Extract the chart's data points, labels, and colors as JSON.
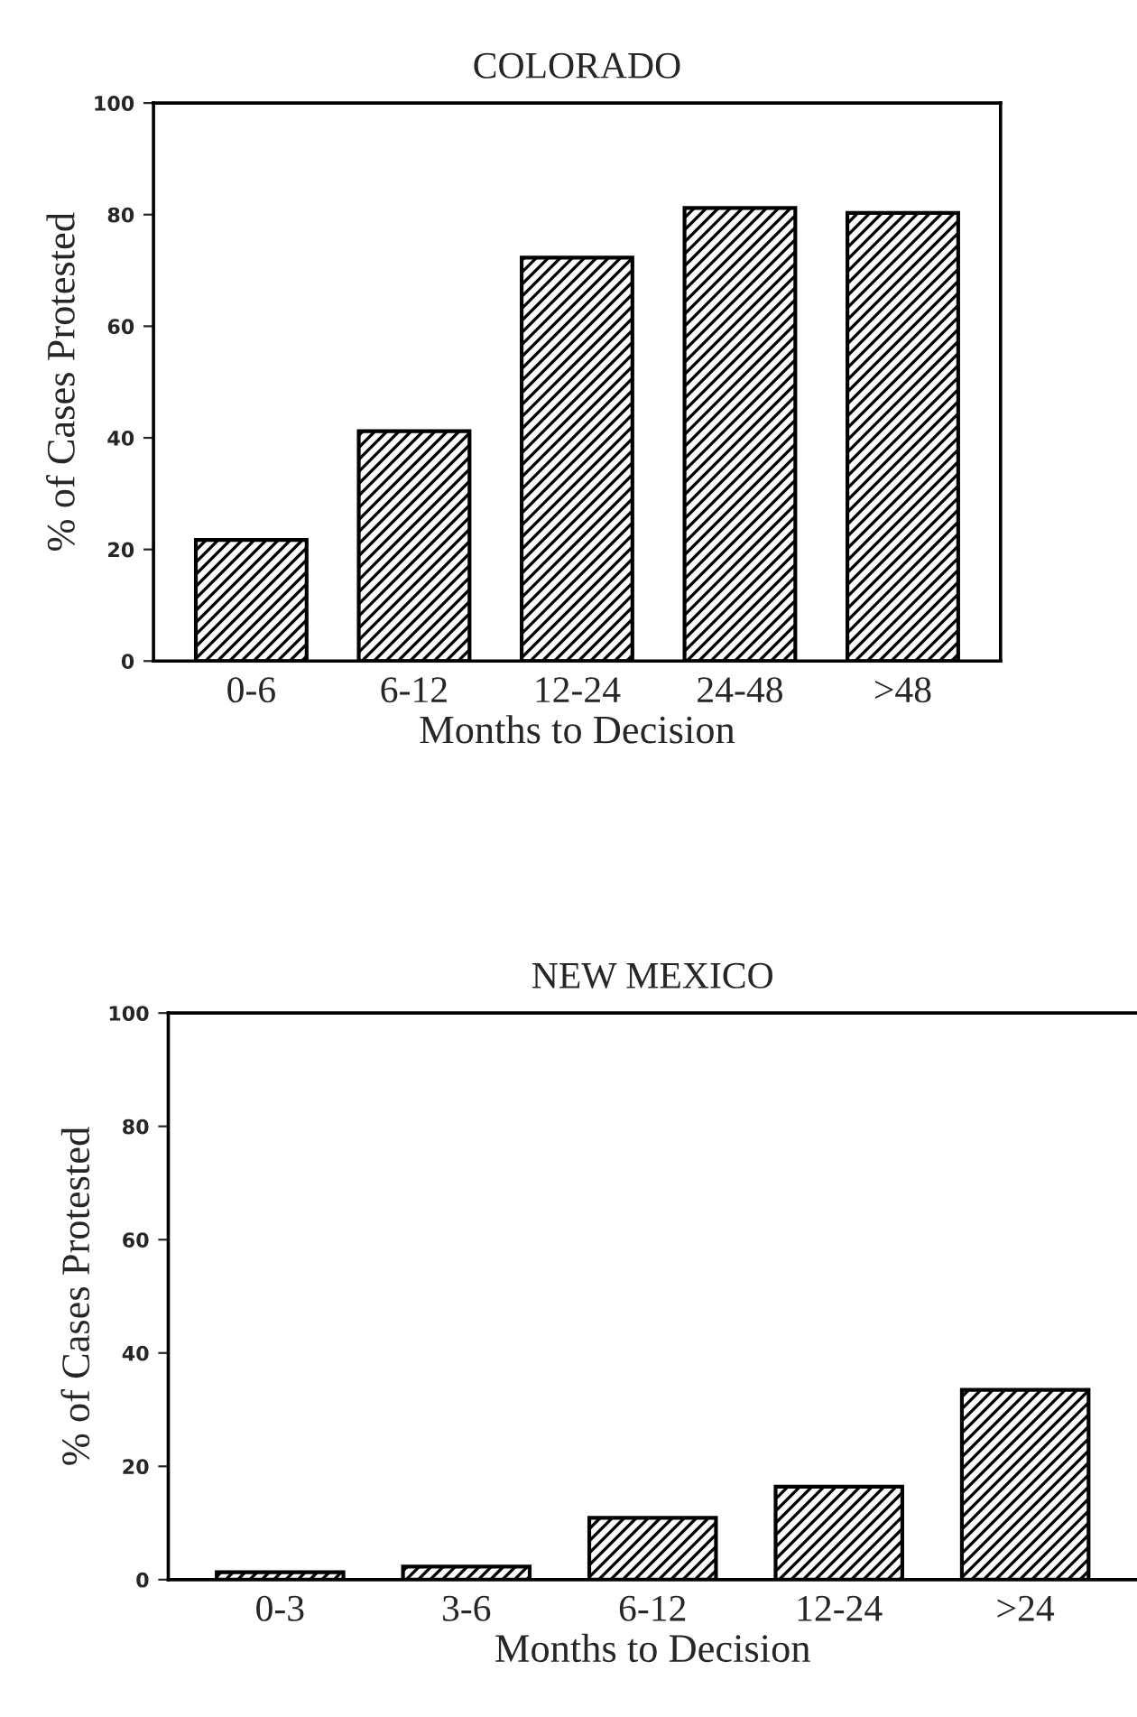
{
  "chart_data": [
    {
      "type": "bar",
      "title": "COLORADO",
      "xlabel": "Months to Decision",
      "ylabel": "% of Cases Protested",
      "categories": [
        "0-6",
        "6-12",
        "12-24",
        "24-48",
        ">48"
      ],
      "values": [
        21.7,
        41.2,
        72.3,
        81.2,
        80.3
      ],
      "color": "#000000",
      "ylim": [
        0,
        100
      ],
      "yticks": [
        0,
        20,
        40,
        60,
        80,
        100
      ],
      "grid": false,
      "legend": false
    },
    {
      "type": "bar",
      "title": "NEW MEXICO",
      "xlabel": "Months to Decision",
      "ylabel": "% of Cases Protested",
      "categories": [
        "0-3",
        "3-6",
        "6-12",
        "12-24",
        ">24"
      ],
      "values": [
        1.3,
        2.3,
        10.9,
        16.4,
        33.5
      ],
      "color": "#000000",
      "ylim": [
        0,
        100
      ],
      "yticks": [
        0,
        20,
        40,
        60,
        80,
        100
      ],
      "grid": false,
      "legend": false
    }
  ]
}
